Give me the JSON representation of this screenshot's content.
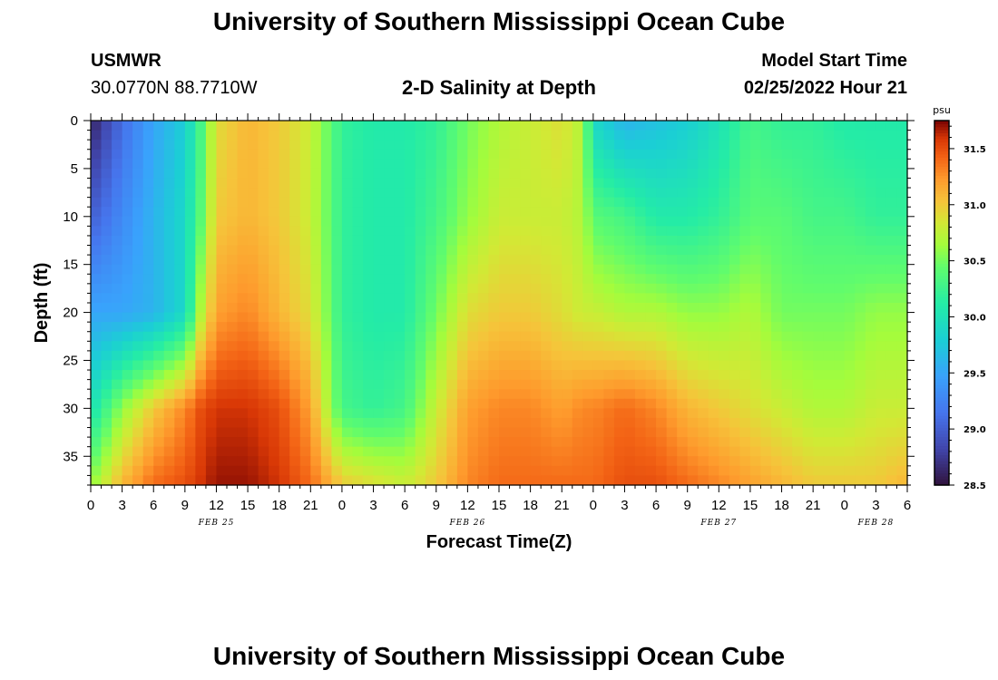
{
  "page": {
    "title": "University of Southern Mississippi Ocean Cube",
    "footer_title": "University of Southern Mississippi Ocean Cube",
    "station": "USMWR",
    "coordinates": "30.0770N  88.7710W",
    "plot_title": "2-D Salinity at Depth",
    "model_start_label": "Model Start Time",
    "model_start_value": "02/25/2022 Hour 21"
  },
  "chart_data": {
    "type": "heatmap",
    "title": "2-D Salinity at Depth",
    "xlabel": "Forecast Time(Z)",
    "ylabel": "Depth (ft)",
    "x_range_hours": [
      0,
      78
    ],
    "x_tick_labels": [
      "0",
      "3",
      "6",
      "9",
      "12",
      "15",
      "18",
      "21",
      "0",
      "3",
      "6",
      "9",
      "12",
      "15",
      "18",
      "21",
      "0",
      "3",
      "6",
      "9",
      "12",
      "15",
      "18",
      "21",
      "0",
      "3",
      "6"
    ],
    "day_labels": [
      {
        "text": "FEB 25",
        "hour": 12
      },
      {
        "text": "FEB 26",
        "hour": 36
      },
      {
        "text": "FEB 27",
        "hour": 60
      },
      {
        "text": "FEB 28",
        "hour": 75
      }
    ],
    "y_range_ft": [
      0,
      38
    ],
    "y_ticks": [
      0,
      5,
      10,
      15,
      20,
      25,
      30,
      35
    ],
    "y_inverted": true,
    "colorbar": {
      "unit": "psu",
      "min": 28.5,
      "max": 31.75,
      "ticks": [
        "28.5",
        "29.0",
        "29.5",
        "30.0",
        "30.5",
        "31.0",
        "31.5"
      ],
      "colormap": "turbo"
    },
    "depth_levels_ft": [
      0,
      10,
      20,
      30,
      38
    ],
    "time_hours": [
      0,
      3,
      6,
      9,
      10.5,
      12,
      15,
      18,
      21,
      24,
      27,
      30,
      33,
      36,
      39,
      42,
      45,
      47,
      48,
      51,
      54,
      57,
      60,
      63,
      66,
      69,
      72,
      75,
      78
    ],
    "salinity_psu": [
      [
        28.6,
        29.1,
        29.5,
        29.8,
        30.3,
        30.9,
        31.1,
        31.0,
        30.8,
        30.2,
        30.1,
        30.1,
        30.2,
        30.5,
        30.7,
        30.8,
        30.9,
        30.7,
        29.9,
        29.6,
        29.7,
        29.8,
        30.0,
        30.3,
        30.2,
        30.2,
        30.1,
        30.1,
        30.1
      ],
      [
        29.0,
        29.3,
        29.6,
        29.9,
        30.4,
        31.0,
        31.1,
        31.0,
        30.8,
        30.2,
        30.1,
        30.1,
        30.3,
        30.6,
        30.8,
        30.8,
        30.8,
        30.7,
        30.4,
        30.3,
        30.1,
        30.1,
        30.2,
        30.4,
        30.4,
        30.3,
        30.3,
        30.2,
        30.2
      ],
      [
        29.5,
        29.5,
        29.6,
        29.9,
        30.7,
        31.2,
        31.3,
        31.1,
        30.9,
        30.2,
        30.1,
        30.1,
        30.5,
        30.9,
        31.0,
        31.0,
        30.9,
        30.8,
        30.8,
        30.7,
        30.7,
        30.6,
        30.6,
        30.7,
        30.5,
        30.5,
        30.5,
        30.6,
        30.6
      ],
      [
        30.0,
        30.6,
        31.0,
        31.3,
        31.5,
        31.6,
        31.6,
        31.5,
        31.2,
        30.3,
        30.2,
        30.3,
        30.8,
        31.2,
        31.3,
        31.3,
        31.2,
        31.3,
        31.3,
        31.4,
        31.3,
        31.1,
        31.0,
        30.9,
        30.8,
        30.7,
        30.7,
        30.8,
        30.8
      ],
      [
        30.6,
        31.1,
        31.4,
        31.5,
        31.6,
        31.7,
        31.7,
        31.6,
        31.4,
        31.0,
        30.9,
        30.8,
        31.0,
        31.3,
        31.4,
        31.4,
        31.4,
        31.4,
        31.4,
        31.5,
        31.5,
        31.4,
        31.3,
        31.2,
        31.1,
        31.0,
        31.0,
        31.0,
        31.1
      ]
    ]
  }
}
